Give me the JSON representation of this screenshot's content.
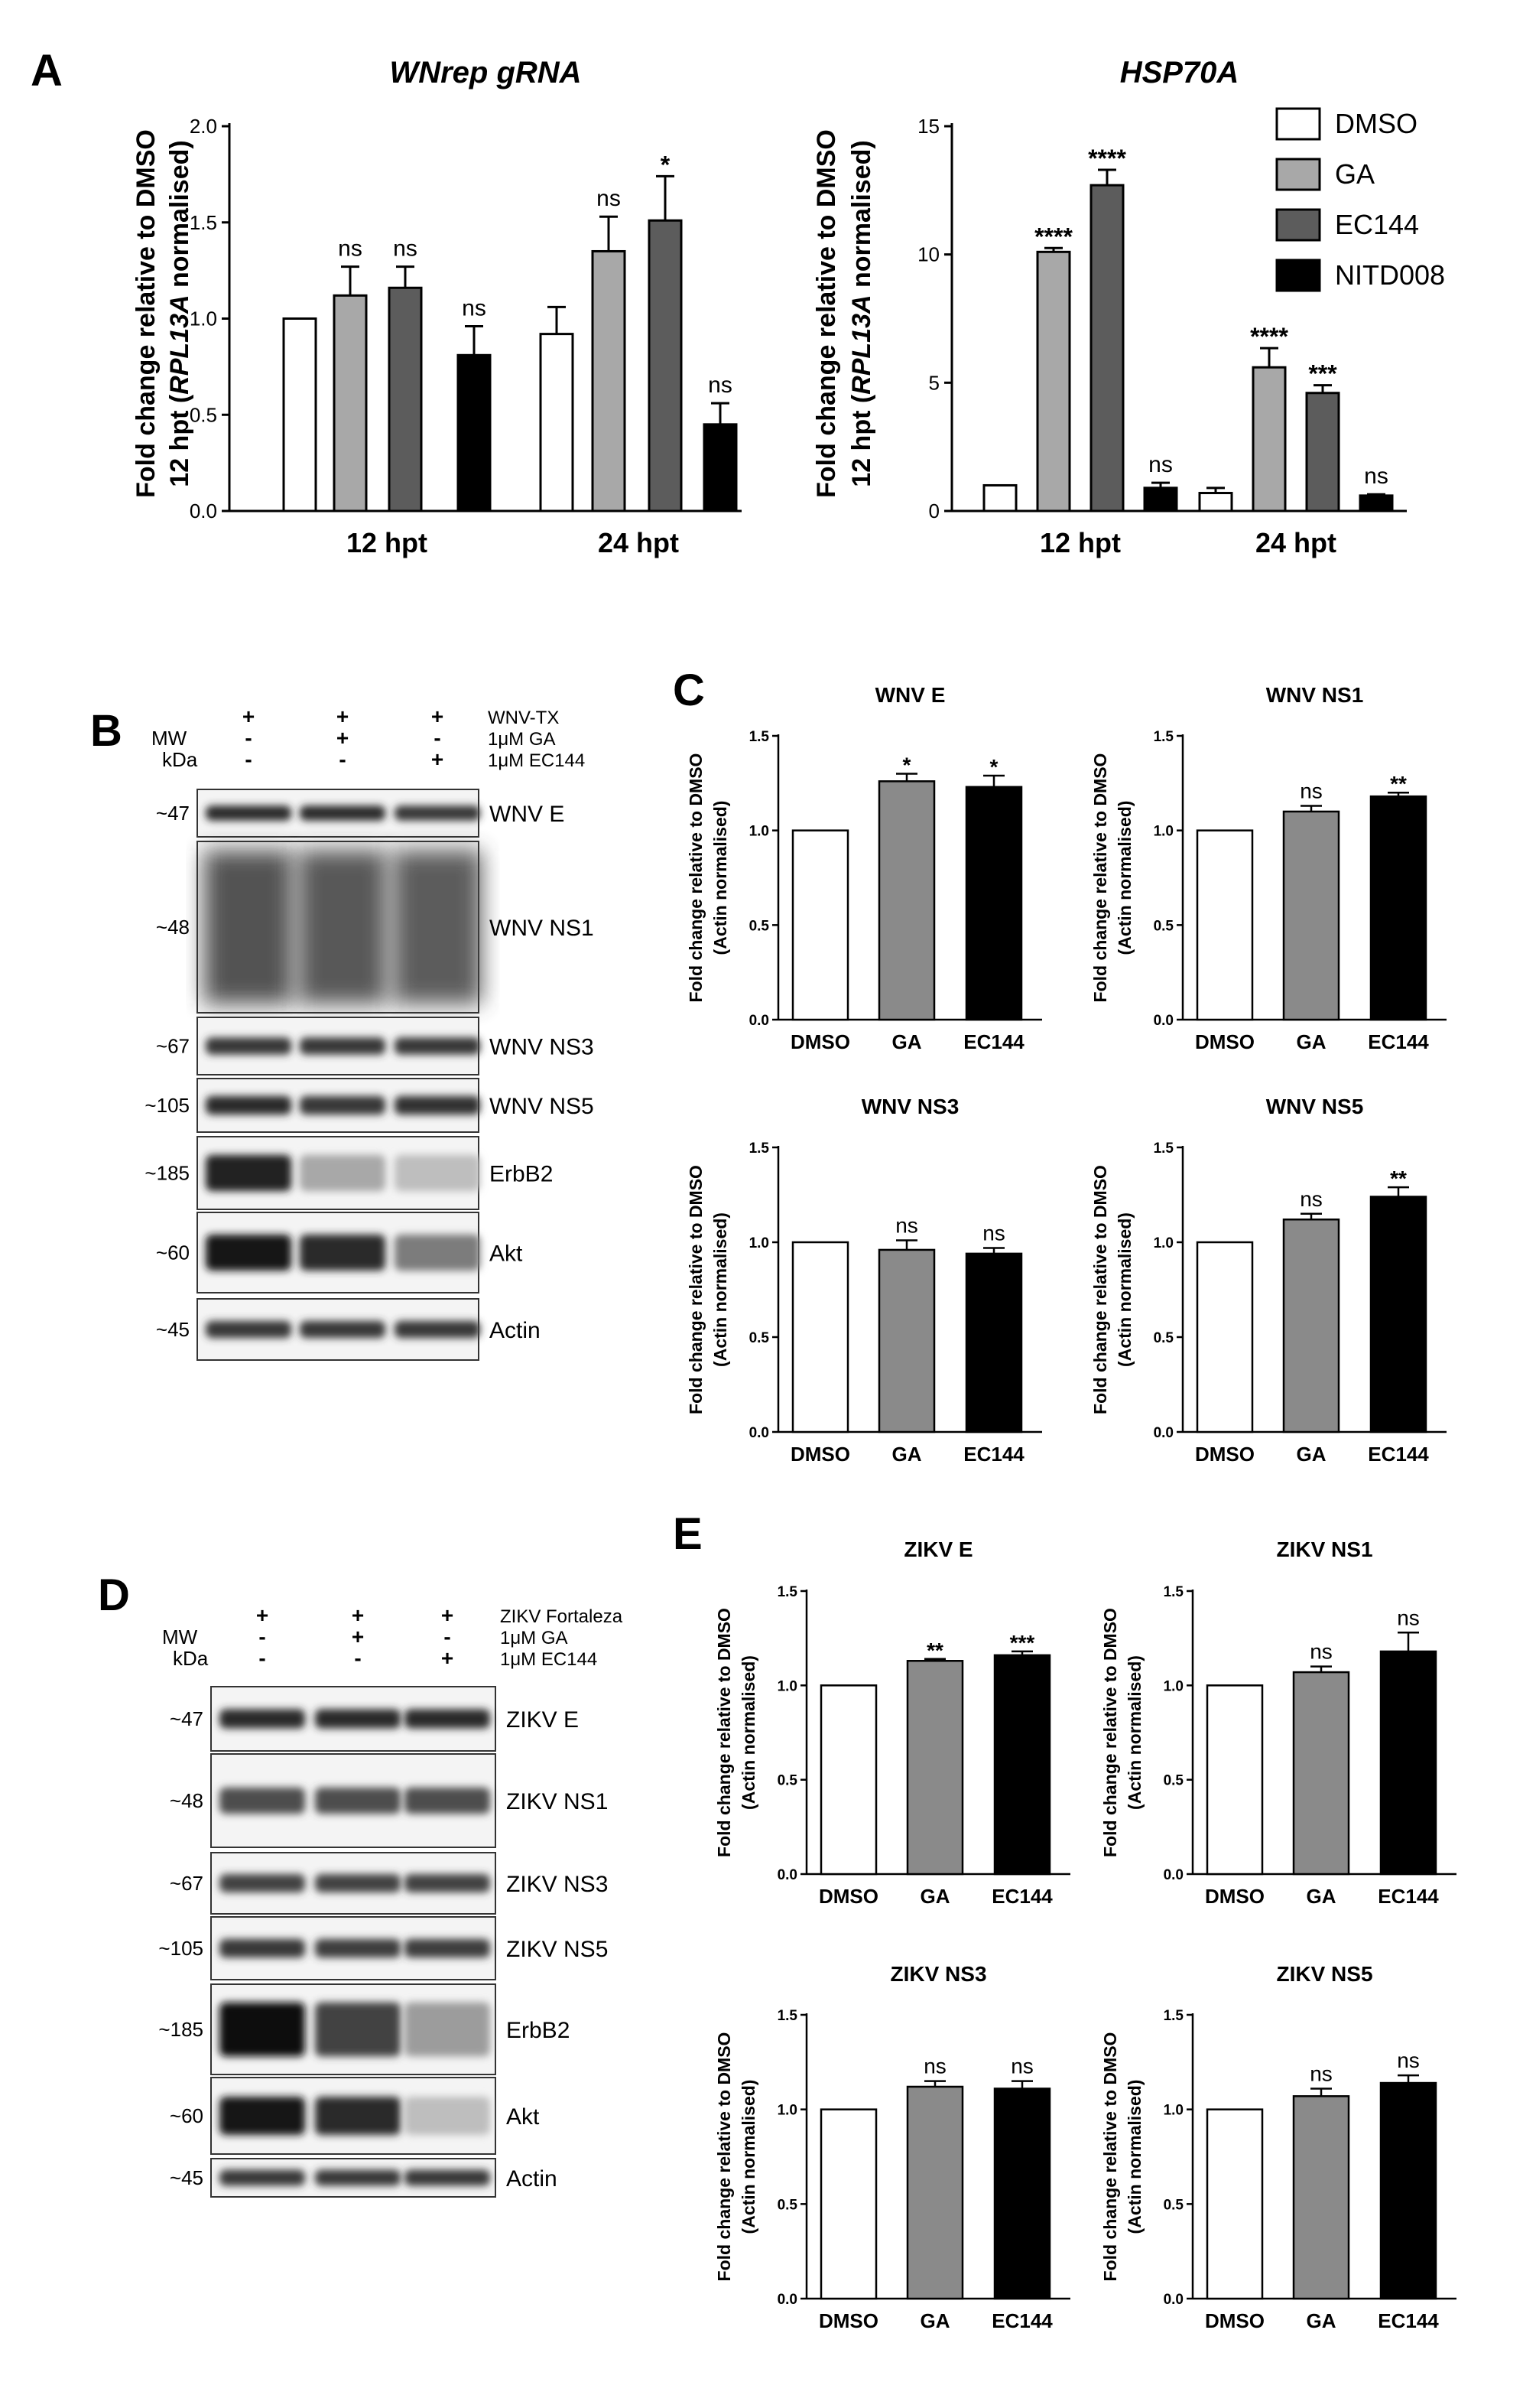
{
  "panels": {
    "A": "A",
    "B": "B",
    "C": "C",
    "D": "D",
    "E": "E"
  },
  "colors": {
    "DMSO": "#ffffff",
    "GA": "#a8a8a8",
    "EC144": "#5c5c5c",
    "NITD008": "#000000",
    "GA_C": "#8a8a8a",
    "EC144_C": "#000000"
  },
  "legend": [
    "DMSO",
    "GA",
    "EC144",
    "NITD008"
  ],
  "panel_a_ylabel": [
    "Fold change relative to DMSO",
    "12 hpt (RPL13A normalised)"
  ],
  "panel_a_ylabel_parts": {
    "line2_pre": "12 hpt (",
    "line2_italic": "RPL13A",
    "line2_post": " normalised)"
  },
  "small_ylabel": [
    "Fold change relative to DMSO",
    "(Actin normalised)"
  ],
  "chart_data": [
    {
      "id": "A1",
      "type": "bar",
      "title": "WNrep gRNA",
      "categories": [
        "12 hpt",
        "24 hpt"
      ],
      "ylim": [
        0,
        2.0
      ],
      "yticks": [
        "0.0",
        "0.5",
        "1.0",
        "1.5",
        "2.0"
      ],
      "series": [
        {
          "name": "DMSO",
          "values": [
            1.0,
            0.92
          ],
          "errors": [
            0,
            0.14
          ],
          "sig": [
            "",
            ""
          ]
        },
        {
          "name": "GA",
          "values": [
            1.12,
            1.35
          ],
          "errors": [
            0.15,
            0.18
          ],
          "sig": [
            "ns",
            "ns"
          ]
        },
        {
          "name": "EC144",
          "values": [
            1.16,
            1.51
          ],
          "errors": [
            0.11,
            0.23
          ],
          "sig": [
            "ns",
            "*"
          ]
        },
        {
          "name": "NITD008",
          "values": [
            0.81,
            0.45
          ],
          "errors": [
            0.15,
            0.11
          ],
          "sig": [
            "ns",
            "ns"
          ]
        }
      ]
    },
    {
      "id": "A2",
      "type": "bar",
      "title": "HSP70A",
      "categories": [
        "12 hpt",
        "24 hpt"
      ],
      "ylim": [
        0,
        15
      ],
      "yticks": [
        "0",
        "5",
        "10",
        "15"
      ],
      "series": [
        {
          "name": "DMSO",
          "values": [
            1.0,
            0.7
          ],
          "errors": [
            0,
            0.2
          ],
          "sig": [
            "",
            ""
          ]
        },
        {
          "name": "GA",
          "values": [
            10.1,
            5.6
          ],
          "errors": [
            0.15,
            0.75
          ],
          "sig": [
            "****",
            "****"
          ]
        },
        {
          "name": "EC144",
          "values": [
            12.7,
            4.6
          ],
          "errors": [
            0.6,
            0.3
          ],
          "sig": [
            "****",
            "***"
          ]
        },
        {
          "name": "NITD008",
          "values": [
            0.9,
            0.6
          ],
          "errors": [
            0.2,
            0.05
          ],
          "sig": [
            "ns",
            "ns"
          ]
        }
      ]
    },
    {
      "id": "C1",
      "type": "bar",
      "title": "WNV E",
      "categories": [
        "DMSO",
        "GA",
        "EC144"
      ],
      "ylim": [
        0,
        1.5
      ],
      "yticks": [
        "0.0",
        "0.5",
        "1.0",
        "1.5"
      ],
      "values": [
        1.0,
        1.26,
        1.23
      ],
      "errors": [
        0,
        0.04,
        0.06
      ],
      "sig": [
        "",
        "*",
        "*"
      ]
    },
    {
      "id": "C2",
      "type": "bar",
      "title": "WNV NS1",
      "categories": [
        "DMSO",
        "GA",
        "EC144"
      ],
      "ylim": [
        0,
        1.5
      ],
      "yticks": [
        "0.0",
        "0.5",
        "1.0",
        "1.5"
      ],
      "values": [
        1.0,
        1.1,
        1.18
      ],
      "errors": [
        0,
        0.03,
        0.02
      ],
      "sig": [
        "",
        "ns",
        "**"
      ]
    },
    {
      "id": "C3",
      "type": "bar",
      "title": "WNV NS3",
      "categories": [
        "DMSO",
        "GA",
        "EC144"
      ],
      "ylim": [
        0,
        1.5
      ],
      "yticks": [
        "0.0",
        "0.5",
        "1.0",
        "1.5"
      ],
      "values": [
        1.0,
        0.96,
        0.94
      ],
      "errors": [
        0,
        0.05,
        0.03
      ],
      "sig": [
        "",
        "ns",
        "ns"
      ]
    },
    {
      "id": "C4",
      "type": "bar",
      "title": "WNV NS5",
      "categories": [
        "DMSO",
        "GA",
        "EC144"
      ],
      "ylim": [
        0,
        1.5
      ],
      "yticks": [
        "0.0",
        "0.5",
        "1.0",
        "1.5"
      ],
      "values": [
        1.0,
        1.12,
        1.24
      ],
      "errors": [
        0,
        0.03,
        0.05
      ],
      "sig": [
        "",
        "ns",
        "**"
      ]
    },
    {
      "id": "E1",
      "type": "bar",
      "title": "ZIKV E",
      "categories": [
        "DMSO",
        "GA",
        "EC144"
      ],
      "ylim": [
        0,
        1.5
      ],
      "yticks": [
        "0.0",
        "0.5",
        "1.0",
        "1.5"
      ],
      "values": [
        1.0,
        1.13,
        1.16
      ],
      "errors": [
        0,
        0.01,
        0.02
      ],
      "sig": [
        "",
        "**",
        "***"
      ]
    },
    {
      "id": "E2",
      "type": "bar",
      "title": "ZIKV NS1",
      "categories": [
        "DMSO",
        "GA",
        "EC144"
      ],
      "ylim": [
        0,
        1.5
      ],
      "yticks": [
        "0.0",
        "0.5",
        "1.0",
        "1.5"
      ],
      "values": [
        1.0,
        1.07,
        1.18
      ],
      "errors": [
        0,
        0.03,
        0.1
      ],
      "sig": [
        "",
        "ns",
        "ns"
      ]
    },
    {
      "id": "E3",
      "type": "bar",
      "title": "ZIKV NS3",
      "categories": [
        "DMSO",
        "GA",
        "EC144"
      ],
      "ylim": [
        0,
        1.5
      ],
      "yticks": [
        "0.0",
        "0.5",
        "1.0",
        "1.5"
      ],
      "values": [
        1.0,
        1.12,
        1.11
      ],
      "errors": [
        0,
        0.03,
        0.04
      ],
      "sig": [
        "",
        "ns",
        "ns"
      ]
    },
    {
      "id": "E4",
      "type": "bar",
      "title": "ZIKV NS5",
      "categories": [
        "DMSO",
        "GA",
        "EC144"
      ],
      "ylim": [
        0,
        1.5
      ],
      "yticks": [
        "0.0",
        "0.5",
        "1.0",
        "1.5"
      ],
      "values": [
        1.0,
        1.07,
        1.14
      ],
      "errors": [
        0,
        0.04,
        0.04
      ],
      "sig": [
        "",
        "ns",
        "ns"
      ]
    }
  ],
  "blot_B": {
    "header_rows": [
      {
        "label": "WNV-TX",
        "signs": [
          "+",
          "+",
          "+"
        ]
      },
      {
        "label": "1μM GA",
        "signs": [
          "-",
          "+",
          "-"
        ]
      },
      {
        "label": "1μM EC144",
        "signs": [
          "-",
          "-",
          "+"
        ]
      }
    ],
    "mw_label": "MW",
    "kda_label": "kDa",
    "strips": [
      {
        "mw": "~47",
        "label": "WNV E",
        "intensities": [
          0.85,
          0.85,
          0.8
        ]
      },
      {
        "mw": "~48",
        "label": "WNV NS1",
        "intensities": [
          0.8,
          0.78,
          0.75
        ]
      },
      {
        "mw": "~67",
        "label": "WNV NS3",
        "intensities": [
          0.8,
          0.8,
          0.8
        ]
      },
      {
        "mw": "~105",
        "label": "WNV NS5",
        "intensities": [
          0.85,
          0.8,
          0.82
        ]
      },
      {
        "mw": "~185",
        "label": "ErbB2",
        "intensities": [
          0.9,
          0.3,
          0.2
        ]
      },
      {
        "mw": "~60",
        "label": "Akt",
        "intensities": [
          0.95,
          0.85,
          0.5
        ]
      },
      {
        "mw": "~45",
        "label": "Actin",
        "intensities": [
          0.8,
          0.8,
          0.8
        ]
      }
    ]
  },
  "blot_D": {
    "header_rows": [
      {
        "label": "ZIKV Fortaleza",
        "signs": [
          "+",
          "+",
          "+"
        ]
      },
      {
        "label": "1μM GA",
        "signs": [
          "-",
          "+",
          "-"
        ]
      },
      {
        "label": "1μM EC144",
        "signs": [
          "-",
          "-",
          "+"
        ]
      }
    ],
    "mw_label": "MW",
    "kda_label": "kDa",
    "strips": [
      {
        "mw": "~47",
        "label": "ZIKV E",
        "intensities": [
          0.85,
          0.85,
          0.85
        ]
      },
      {
        "mw": "~48",
        "label": "ZIKV NS1",
        "intensities": [
          0.7,
          0.7,
          0.7
        ]
      },
      {
        "mw": "~67",
        "label": "ZIKV NS3",
        "intensities": [
          0.75,
          0.75,
          0.75
        ]
      },
      {
        "mw": "~105",
        "label": "ZIKV NS5",
        "intensities": [
          0.8,
          0.78,
          0.78
        ]
      },
      {
        "mw": "~185",
        "label": "ErbB2",
        "intensities": [
          1.0,
          0.75,
          0.35
        ]
      },
      {
        "mw": "~60",
        "label": "Akt",
        "intensities": [
          0.95,
          0.85,
          0.2
        ]
      },
      {
        "mw": "~45",
        "label": "Actin",
        "intensities": [
          0.8,
          0.8,
          0.8
        ]
      }
    ]
  }
}
